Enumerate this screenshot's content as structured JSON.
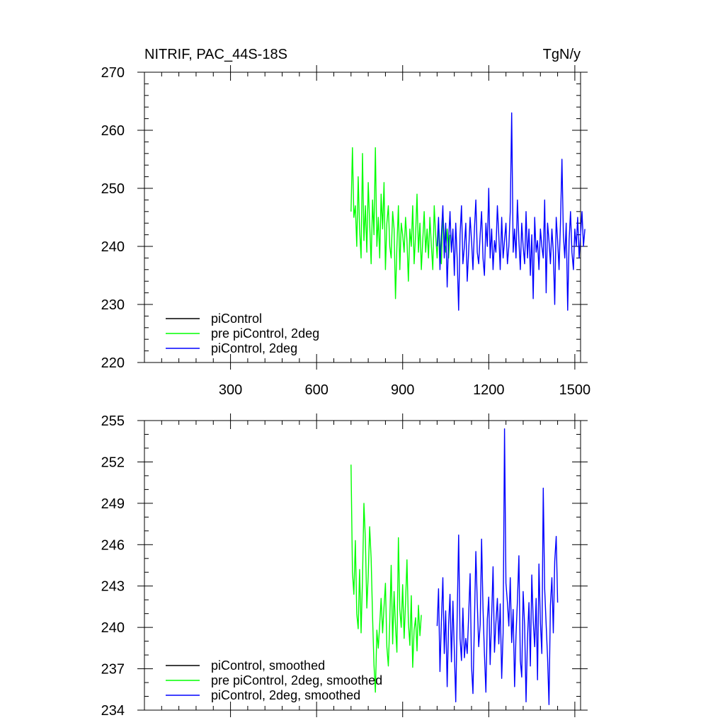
{
  "chart_data": [
    {
      "type": "line",
      "title": "NITRIF, PAC_44S-18S",
      "units": "TgN/y",
      "xlim": [
        0,
        1520
      ],
      "ylim": [
        220,
        270
      ],
      "xticks": [
        300,
        600,
        900,
        1200,
        1500
      ],
      "yticks": [
        220,
        230,
        240,
        250,
        260,
        270
      ],
      "grid": false,
      "legend_placement": "bottom-left",
      "series": [
        {
          "name": "piControl",
          "color": "#000000",
          "x": [],
          "y": []
        },
        {
          "name": "pre piControl, 2deg",
          "color": "#00ff00",
          "x_start": 720,
          "x_step": 5,
          "y": [
            246,
            257,
            245,
            247,
            240,
            252,
            243,
            238,
            256,
            241,
            247,
            239,
            251,
            244,
            237,
            248,
            242,
            257,
            240,
            245,
            238,
            249,
            243,
            251,
            236,
            244,
            247,
            240,
            238,
            246,
            243,
            231,
            240,
            247,
            236,
            244,
            242,
            239,
            245,
            241,
            234,
            243,
            240,
            247,
            237,
            242,
            249,
            239,
            244,
            236,
            241,
            246,
            239,
            243,
            238,
            245,
            240,
            236,
            247,
            242,
            238,
            244,
            240,
            237,
            246,
            241,
            239,
            243,
            238,
            242
          ]
        },
        {
          "name": "piControl, 2deg",
          "color": "#0000ff",
          "x_start": 1020,
          "x_step": 5,
          "y": [
            240,
            245,
            236,
            242,
            247,
            238,
            244,
            233,
            241,
            246,
            239,
            243,
            235,
            244,
            238,
            229,
            242,
            247,
            237,
            240,
            244,
            234,
            239,
            245,
            241,
            236,
            243,
            248,
            239,
            237,
            242,
            246,
            238,
            235,
            244,
            240,
            250,
            238,
            243,
            236,
            241,
            239,
            247,
            242,
            236,
            245,
            238,
            241,
            244,
            237,
            240,
            246,
            263,
            239,
            243,
            238,
            248,
            241,
            236,
            244,
            240,
            237,
            246,
            238,
            243,
            235,
            242,
            231,
            245,
            239,
            241,
            236,
            243,
            240,
            238,
            248,
            232,
            244,
            241,
            237,
            243,
            239,
            230,
            245,
            241,
            236,
            244,
            255,
            242,
            238,
            244,
            229,
            241,
            246,
            239,
            236,
            243,
            240,
            245,
            238,
            242,
            246,
            240,
            243
          ]
        }
      ]
    },
    {
      "type": "line",
      "xlim": [
        0,
        1520
      ],
      "ylim": [
        234,
        255
      ],
      "xticks": [
        300,
        600,
        900,
        1200,
        1500
      ],
      "yticks": [
        234,
        237,
        240,
        243,
        246,
        249,
        252,
        255
      ],
      "grid": false,
      "legend_placement": "bottom-left",
      "series": [
        {
          "name": "piControl, smoothed",
          "color": "#000000",
          "x": [],
          "y": []
        },
        {
          "name": "pre piControl, 2deg, smoothed",
          "color": "#00ff00",
          "x_start": 720,
          "x_step": 5,
          "y": [
            251.8,
            244,
            242.4,
            246.3,
            241,
            239.9,
            244.2,
            239.6,
            243.5,
            249,
            246.3,
            241.4,
            243.8,
            247.3,
            245,
            240.8,
            237.3,
            235.3,
            239.8,
            238.5,
            240.2,
            242.1,
            239.6,
            241.5,
            243.2,
            238.6,
            237.2,
            240.4,
            244.5,
            238.8,
            242.6,
            240.1,
            238.2,
            246.5,
            241.3,
            240,
            243.1,
            239.2,
            241.8,
            244.9,
            240.4,
            238.7,
            242.3,
            237.1,
            239.8,
            240.7,
            238.3,
            241.6,
            239.4,
            240.9
          ]
        },
        {
          "name": "piControl, 2deg, smoothed",
          "color": "#0000ff",
          "x_start": 1020,
          "x_step": 5,
          "y": [
            240.1,
            242.8,
            236.8,
            240.4,
            243.6,
            238.1,
            241.2,
            235.7,
            240.2,
            242.4,
            237.5,
            241.9,
            238.3,
            234.6,
            240.7,
            246.7,
            239.2,
            237.6,
            241.4,
            237.8,
            239.2,
            238.1,
            240.8,
            243.9,
            237.2,
            235.2,
            240.4,
            245.5,
            241.8,
            238.6,
            240.2,
            246.4,
            241.4,
            238.1,
            235.3,
            240.6,
            242.2,
            237.3,
            240.8,
            244.4,
            238.2,
            240.3,
            242.1,
            238.8,
            241.7,
            236.3,
            239.6,
            254.4,
            243.2,
            241.8,
            240.1,
            243.6,
            238.9,
            241.3,
            235.7,
            239.4,
            241.9,
            245.2,
            237.6,
            236.4,
            242.6,
            240.1,
            234.6,
            239.2,
            241.8,
            237.2,
            243.8,
            240.5,
            238.6,
            242.1,
            236.2,
            244.6,
            240.3,
            238.1,
            250.1,
            242.8,
            240.2,
            237.8,
            234.4,
            241.6,
            243.6,
            239.6,
            244.8,
            246.6,
            241.8
          ]
        }
      ]
    }
  ]
}
